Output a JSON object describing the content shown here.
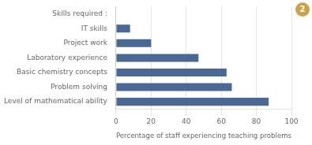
{
  "chart_data": {
    "type": "bar",
    "orientation": "horizontal",
    "categories": [
      "Level of mathematical ability",
      "Problem solving",
      "Basic chemistry concepts",
      "Laboratory experience",
      "Project work",
      "IT skills",
      "Skills required :"
    ],
    "values": [
      87,
      66,
      63,
      47,
      20,
      8,
      null
    ],
    "color": "#4a6891",
    "x_label": "Percentage of staff experiencing teaching problems",
    "xlim": [
      0,
      100
    ],
    "xticks": [
      0,
      20,
      40,
      60,
      80,
      100
    ],
    "grid": true,
    "annotations": [
      "2"
    ]
  }
}
